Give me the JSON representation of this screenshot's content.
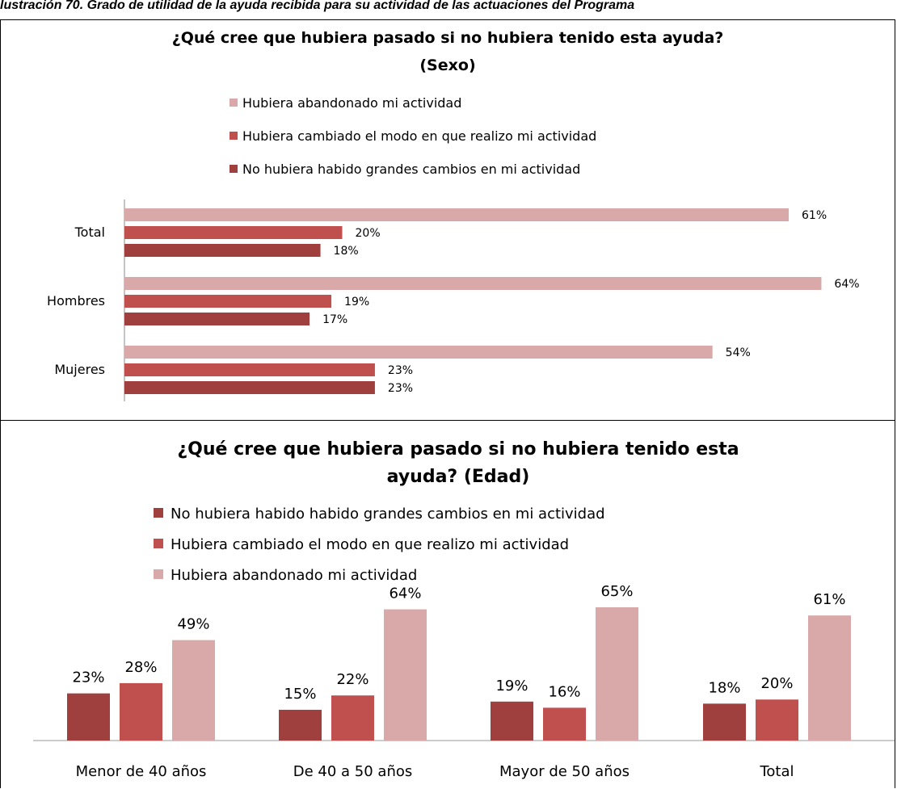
{
  "caption": "lustración 70. Grado de utilidad de la ayuda recibida para su actividad de las actuaciones del Programa",
  "colors": {
    "abandonado": "#D9A8A8",
    "cambiado": "#C0504D",
    "sin_cambios": "#A0403E"
  },
  "chart_data": [
    {
      "type": "bar",
      "orientation": "horizontal",
      "title": "¿Qué cree que hubiera pasado si no hubiera tenido esta ayuda? (Sexo)",
      "title_lines": [
        "¿Qué cree que hubiera pasado si no hubiera tenido esta ayuda?",
        "(Sexo)"
      ],
      "categories": [
        "Total",
        "Hombres",
        "Mujeres"
      ],
      "series": [
        {
          "name": "Hubiera abandonado mi actividad",
          "color_key": "abandonado",
          "values": [
            61,
            64,
            54
          ]
        },
        {
          "name": "Hubiera cambiado el modo en que realizo mi actividad",
          "color_key": "cambiado",
          "values": [
            20,
            19,
            23
          ]
        },
        {
          "name": "No hubiera habido grandes cambios en mi actividad",
          "color_key": "sin_cambios",
          "values": [
            18,
            17,
            23
          ]
        }
      ],
      "value_suffix": "%",
      "xlim": [
        0,
        100
      ],
      "legend_position": "top"
    },
    {
      "type": "bar",
      "orientation": "vertical",
      "title": "¿Qué cree que hubiera pasado si no hubiera tenido esta ayuda? (Edad)",
      "title_lines": [
        "¿Qué cree que hubiera pasado si no hubiera tenido esta",
        "ayuda? (Edad)"
      ],
      "categories": [
        "Menor de 40 años",
        "De 40 a 50 años",
        "Mayor de 50 años",
        "Total"
      ],
      "series": [
        {
          "name": "No hubiera habido habido grandes cambios en mi actividad",
          "color_key": "sin_cambios",
          "values": [
            23,
            15,
            19,
            18
          ]
        },
        {
          "name": "Hubiera cambiado el modo en que realizo mi actividad",
          "color_key": "cambiado",
          "values": [
            28,
            22,
            16,
            20
          ]
        },
        {
          "name": "Hubiera abandonado mi actividad",
          "color_key": "abandonado",
          "values": [
            49,
            64,
            65,
            61
          ]
        }
      ],
      "value_suffix": "%",
      "ylim": [
        0,
        100
      ],
      "legend_position": "top"
    }
  ]
}
